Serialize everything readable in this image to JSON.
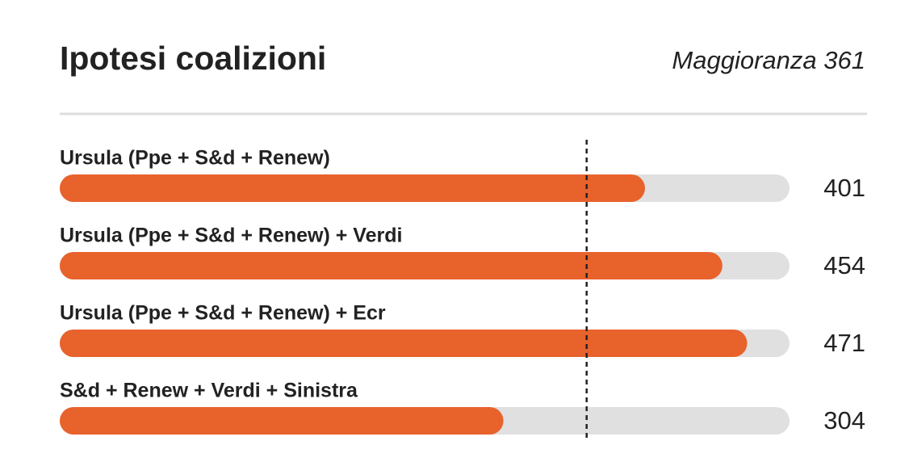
{
  "chart_data": {
    "type": "bar",
    "orientation": "horizontal",
    "title": "Ipotesi coalizioni",
    "reference_label": "Maggioranza",
    "reference_value": 361,
    "categories": [
      "Ursula (Ppe + S&d + Renew)",
      "Ursula (Ppe + S&d + Renew) + Verdi",
      "Ursula (Ppe + S&d + Renew) + Ecr",
      "S&d + Renew + Verdi + Sinistra"
    ],
    "values": [
      401,
      454,
      471,
      304
    ],
    "color": "#e8622c",
    "track_color": "#e0e0e0",
    "xlim": [
      0,
      500
    ]
  }
}
